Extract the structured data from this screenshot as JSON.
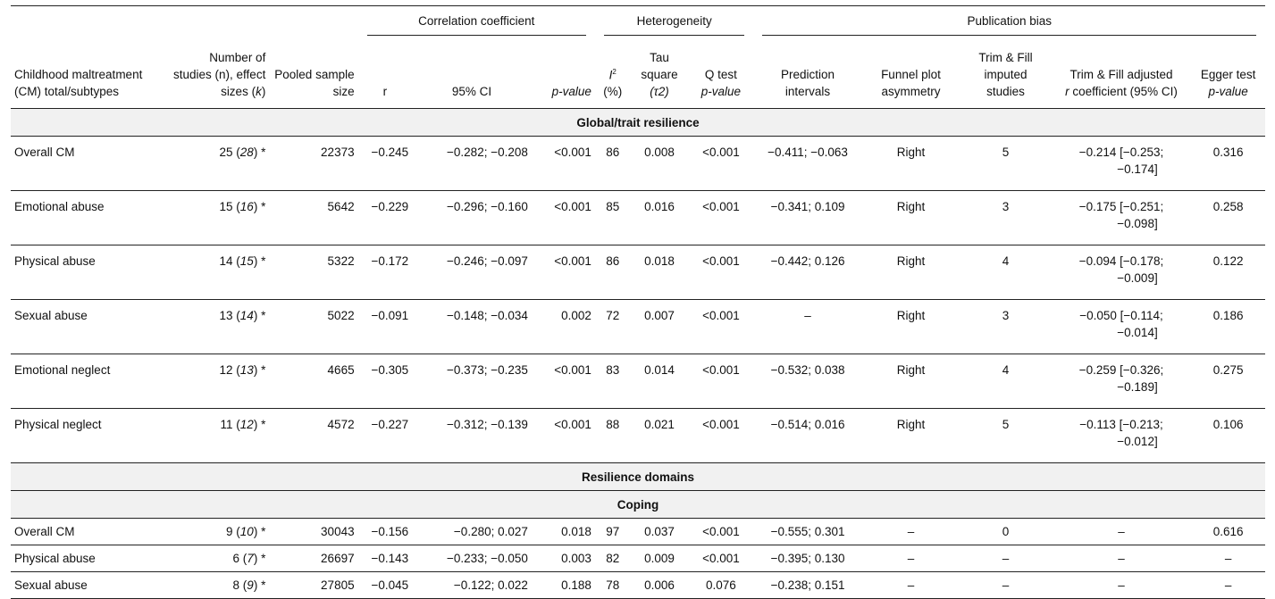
{
  "header": {
    "groups": {
      "correlation": "Correlation coefficient",
      "heterogeneity": "Heterogeneity",
      "publication_bias": "Publication bias"
    },
    "columns": {
      "cm": "Childhood maltreatment (CM) total/subtypes",
      "studies_pre": "Number of studies (n), effect sizes (",
      "studies_k": "k",
      "studies_post": ")",
      "pooled": "Pooled sample size",
      "r": "r",
      "ci": "95% CI",
      "p_value": "p-value",
      "i2_i": "I",
      "i2_sup": "2",
      "i2_pct": "(%)",
      "tau_line1": "Tau square",
      "tau_line2": "(τ2)",
      "q_line1": "Q test",
      "q_line2": "p-value",
      "prediction": "Prediction intervals",
      "funnel": "Funnel plot asymmetry",
      "trim_imputed": "Trim & Fill imputed studies",
      "trim_adj_line1": "Trim & Fill adjusted",
      "trim_adj_r": "r",
      "trim_adj_rest": "coefficient (95% CI)",
      "egger_line1": "Egger test",
      "egger_line2": "p-value"
    }
  },
  "sections": {
    "global": "Global/trait resilience",
    "domains": "Resilience domains",
    "coping": "Coping"
  },
  "global_rows": [
    {
      "cm": "Overall CM",
      "n": "25",
      "k": "28",
      "star": "*",
      "pooled": "22373",
      "r": "−0.245",
      "ci": "−0.282; −0.208",
      "p": "<0.001",
      "i2": "86",
      "tau": "0.008",
      "q": "<0.001",
      "pi": "−0.411; −0.063",
      "funnel": "Right",
      "imputed": "5",
      "adj1": "−0.214 [−0.253;",
      "adj2": "−0.174]",
      "egger": "0.316"
    },
    {
      "cm": "Emotional abuse",
      "n": "15",
      "k": "16",
      "star": "*",
      "pooled": "5642",
      "r": "−0.229",
      "ci": "−0.296; −0.160",
      "p": "<0.001",
      "i2": "85",
      "tau": "0.016",
      "q": "<0.001",
      "pi": "−0.341; 0.109",
      "funnel": "Right",
      "imputed": "3",
      "adj1": "−0.175 [−0.251;",
      "adj2": "−0.098]",
      "egger": "0.258"
    },
    {
      "cm": "Physical abuse",
      "n": "14",
      "k": "15",
      "star": "*",
      "pooled": "5322",
      "r": "−0.172",
      "ci": "−0.246; −0.097",
      "p": "<0.001",
      "i2": "86",
      "tau": "0.018",
      "q": "<0.001",
      "pi": "−0.442; 0.126",
      "funnel": "Right",
      "imputed": "4",
      "adj1": "−0.094 [−0.178;",
      "adj2": "−0.009]",
      "egger": "0.122"
    },
    {
      "cm": "Sexual abuse",
      "n": "13",
      "k": "14",
      "star": "*",
      "pooled": "5022",
      "r": "−0.091",
      "ci": "−0.148; −0.034",
      "p": "0.002",
      "i2": "72",
      "tau": "0.007",
      "q": "<0.001",
      "pi": "–",
      "funnel": "Right",
      "imputed": "3",
      "adj1": "−0.050 [−0.114;",
      "adj2": "−0.014]",
      "egger": "0.186"
    },
    {
      "cm": "Emotional neglect",
      "n": "12",
      "k": "13",
      "star": "*",
      "pooled": "4665",
      "r": "−0.305",
      "ci": "−0.373; −0.235",
      "p": "<0.001",
      "i2": "83",
      "tau": "0.014",
      "q": "<0.001",
      "pi": "−0.532; 0.038",
      "funnel": "Right",
      "imputed": "4",
      "adj1": "−0.259 [−0.326;",
      "adj2": "−0.189]",
      "egger": "0.275"
    },
    {
      "cm": "Physical neglect",
      "n": "11",
      "k": "12",
      "star": "*",
      "pooled": "4572",
      "r": "−0.227",
      "ci": "−0.312; −0.139",
      "p": "<0.001",
      "i2": "88",
      "tau": "0.021",
      "q": "<0.001",
      "pi": "−0.514; 0.016",
      "funnel": "Right",
      "imputed": "5",
      "adj1": "−0.113 [−0.213;",
      "adj2": "−0.012]",
      "egger": "0.106"
    }
  ],
  "coping_rows": [
    {
      "cm": "Overall CM",
      "n": "9",
      "k": "10",
      "star": "*",
      "pooled": "30043",
      "r": "−0.156",
      "ci": "−0.280; 0.027",
      "p": "0.018",
      "i2": "97",
      "tau": "0.037",
      "q": "<0.001",
      "pi": "−0.555; 0.301",
      "funnel": "–",
      "imputed": "0",
      "adj": "–",
      "egger": "0.616"
    },
    {
      "cm": "Physical abuse",
      "n": "6",
      "k": "7",
      "star": "*",
      "pooled": "26697",
      "r": "−0.143",
      "ci": "−0.233; −0.050",
      "p": "0.003",
      "i2": "82",
      "tau": "0.009",
      "q": "<0.001",
      "pi": "−0.395; 0.130",
      "funnel": "–",
      "imputed": "–",
      "adj": "–",
      "egger": "–"
    },
    {
      "cm": "Sexual abuse",
      "n": "8",
      "k": "9",
      "star": "*",
      "pooled": "27805",
      "r": "−0.045",
      "ci": "−0.122; 0.022",
      "p": "0.188",
      "i2": "78",
      "tau": "0.006",
      "q": "0.076",
      "pi": "−0.238; 0.151",
      "funnel": "–",
      "imputed": "–",
      "adj": "–",
      "egger": "–"
    }
  ]
}
